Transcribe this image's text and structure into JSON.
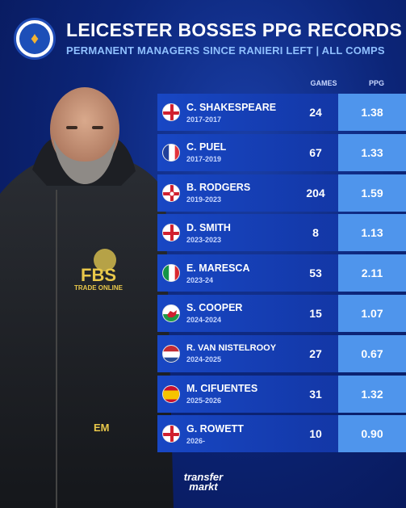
{
  "header": {
    "title": "LEICESTER BOSSES PPG RECORDS",
    "subtitle": "PERMANENT MANAGERS SINCE RANIERI LEFT | ALL COMPS"
  },
  "columns": {
    "games": "GAMES",
    "ppg": "PPG"
  },
  "managers": [
    {
      "name": "C. SHAKESPEARE",
      "years": "2017-2017",
      "games": "24",
      "ppg": "1.38",
      "flag": "england"
    },
    {
      "name": "C. PUEL",
      "years": "2017-2019",
      "games": "67",
      "ppg": "1.33",
      "flag": "france"
    },
    {
      "name": "B. RODGERS",
      "years": "2019-2023",
      "games": "204",
      "ppg": "1.59",
      "flag": "northern-ireland"
    },
    {
      "name": "D. SMITH",
      "years": "2023-2023",
      "games": "8",
      "ppg": "1.13",
      "flag": "england"
    },
    {
      "name": "E. MARESCA",
      "years": "2023-24",
      "games": "53",
      "ppg": "2.11",
      "flag": "italy"
    },
    {
      "name": "S. COOPER",
      "years": "2024-2024",
      "games": "15",
      "ppg": "1.07",
      "flag": "wales"
    },
    {
      "name": "R. VAN NISTELROOY",
      "years": "2024-2025",
      "games": "27",
      "ppg": "0.67",
      "flag": "netherlands"
    },
    {
      "name": "M. CIFUENTES",
      "years": "2025-2026",
      "games": "31",
      "ppg": "1.32",
      "flag": "spain"
    },
    {
      "name": "G. ROWETT",
      "years": "2026-",
      "games": "10",
      "ppg": "0.90",
      "flag": "england"
    }
  ],
  "jacket": {
    "sponsor_line1": "FBS",
    "sponsor_line2": "TRADE ONLINE",
    "initials": "EM"
  },
  "brand": {
    "line1": "transfer",
    "line2": "markt"
  },
  "colors": {
    "row_main": "#1847c4",
    "row_ppg": "#4f95ec",
    "subtitle": "#8fc0ff"
  }
}
